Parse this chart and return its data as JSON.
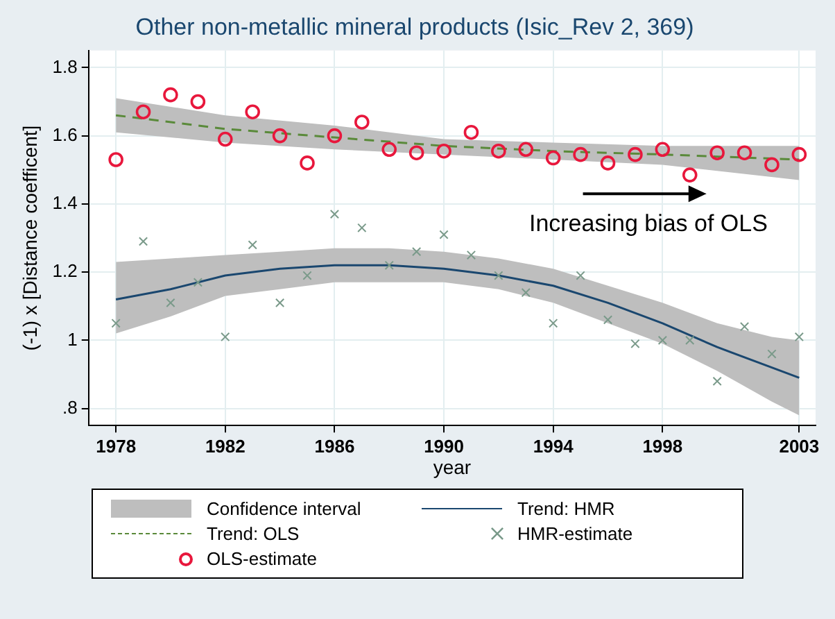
{
  "chart_data": {
    "type": "scatter",
    "title": "Other non-metallic mineral products (Isic_Rev 2, 369)",
    "xlabel": "year",
    "ylabel": "(-1) x [Distance coefficent]",
    "xlim": [
      1977,
      2003.6
    ],
    "xticks": [
      1978,
      1982,
      1986,
      1990,
      1994,
      1998,
      2003
    ],
    "ylim": [
      0.75,
      1.85
    ],
    "yticks": [
      {
        "value": 0.8,
        "label": ".8"
      },
      1,
      1.2,
      1.4,
      1.6,
      1.8
    ],
    "grid": true,
    "legend": "bottom",
    "annotations": [
      "Increasing bias of OLS",
      "Confidence interval"
    ],
    "series": [
      {
        "name": "Trend: HMR",
        "type": "line",
        "color": "#1a476f",
        "line_style": "solid",
        "marker": "none",
        "x": [
          1978,
          1980,
          1982,
          1984,
          1986,
          1988,
          1990,
          1992,
          1994,
          1996,
          1998,
          2000,
          2002,
          2003
        ],
        "values": [
          1.12,
          1.15,
          1.19,
          1.21,
          1.22,
          1.22,
          1.21,
          1.19,
          1.16,
          1.11,
          1.05,
          0.98,
          0.92,
          0.89
        ],
        "lower": [
          1.02,
          1.07,
          1.13,
          1.15,
          1.17,
          1.17,
          1.17,
          1.15,
          1.11,
          1.05,
          0.99,
          0.91,
          0.82,
          0.78
        ],
        "upper": [
          1.23,
          1.24,
          1.25,
          1.26,
          1.27,
          1.27,
          1.26,
          1.24,
          1.21,
          1.16,
          1.11,
          1.05,
          1.01,
          1.0
        ]
      },
      {
        "name": "Trend: OLS",
        "type": "line",
        "color": "#5a8a3a",
        "line_style": "dashed",
        "marker": "none",
        "x": [
          1978,
          1982,
          1986,
          1990,
          1994,
          1998,
          2003
        ],
        "values": [
          1.66,
          1.62,
          1.595,
          1.57,
          1.555,
          1.545,
          1.53
        ],
        "lower": [
          1.61,
          1.58,
          1.56,
          1.545,
          1.53,
          1.515,
          1.47
        ],
        "upper": [
          1.71,
          1.66,
          1.63,
          1.59,
          1.58,
          1.57,
          1.57
        ]
      },
      {
        "name": "HMR-estimate",
        "color": "#7a9a8a",
        "marker": "cross",
        "x": [
          1978,
          1979,
          1980,
          1981,
          1982,
          1983,
          1984,
          1985,
          1986,
          1987,
          1988,
          1989,
          1990,
          1991,
          1992,
          1993,
          1994,
          1995,
          1996,
          1997,
          1998,
          1999,
          2000,
          2001,
          2002,
          2003
        ],
        "values": [
          1.05,
          1.29,
          1.11,
          1.17,
          1.01,
          1.28,
          1.11,
          1.19,
          1.37,
          1.33,
          1.22,
          1.26,
          1.31,
          1.25,
          1.19,
          1.14,
          1.05,
          1.19,
          1.06,
          0.99,
          1.0,
          1.0,
          0.88,
          1.04,
          0.96,
          1.01
        ]
      },
      {
        "name": "OLS-estimate",
        "color": "#e8173c",
        "marker": "circle",
        "x": [
          1978,
          1979,
          1980,
          1981,
          1982,
          1983,
          1984,
          1985,
          1986,
          1987,
          1988,
          1989,
          1990,
          1991,
          1992,
          1993,
          1994,
          1995,
          1996,
          1997,
          1998,
          1999,
          2000,
          2001,
          2002,
          2003
        ],
        "values": [
          1.53,
          1.67,
          1.72,
          1.7,
          1.59,
          1.67,
          1.6,
          1.52,
          1.6,
          1.64,
          1.56,
          1.55,
          1.555,
          1.61,
          1.555,
          1.56,
          1.535,
          1.545,
          1.52,
          1.545,
          1.56,
          1.485,
          1.55,
          1.55,
          1.515,
          1.545
        ]
      }
    ]
  }
}
